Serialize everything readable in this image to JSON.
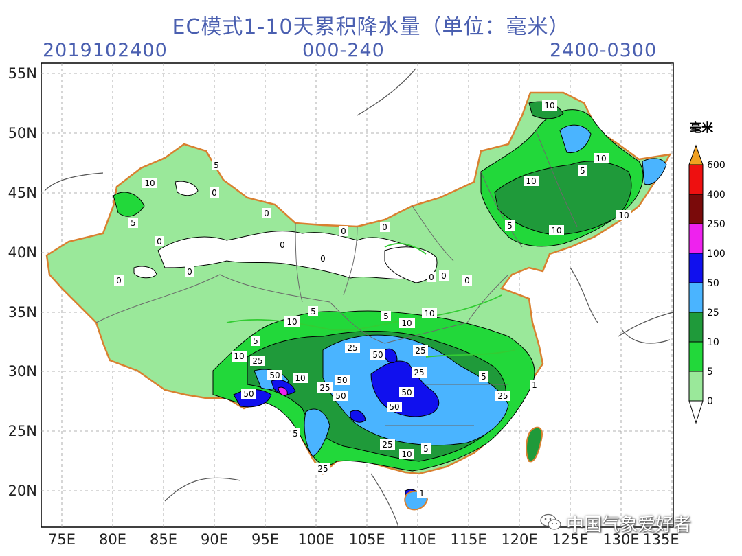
{
  "title": "EC模式1-10天累积降水量（单位：毫米）",
  "header": {
    "init_time": "2019102400",
    "forecast_hours": "000-240",
    "valid_period": "2400-0300"
  },
  "axes": {
    "lon_ticks": [
      "75E",
      "80E",
      "85E",
      "90E",
      "95E",
      "100E",
      "105E",
      "110E",
      "115E",
      "120E",
      "125E",
      "130E",
      "135E"
    ],
    "lat_ticks": [
      "55N",
      "50N",
      "45N",
      "40N",
      "35N",
      "30N",
      "25N",
      "20N"
    ]
  },
  "legend": {
    "unit": "毫米",
    "levels": [
      {
        "label": "0",
        "color": "#ffffff"
      },
      {
        "label": "5",
        "color": "#9ae89a"
      },
      {
        "label": "10",
        "color": "#22d83a"
      },
      {
        "label": "25",
        "color": "#1f9a3a"
      },
      {
        "label": "50",
        "color": "#4ab4ff"
      },
      {
        "label": "100",
        "color": "#1010ee"
      },
      {
        "label": "250",
        "color": "#ee22ee"
      },
      {
        "label": "400",
        "color": "#7a0a0a"
      },
      {
        "label": "600",
        "color": "#ee1010"
      },
      {
        "label": "",
        "color": "#f0a020"
      }
    ]
  },
  "contour_labels": [
    "10",
    "5",
    "10",
    "10",
    "5",
    "0",
    "5",
    "10",
    "0",
    "5",
    "0",
    "0",
    "0",
    "0",
    "0",
    "0",
    "0",
    "0",
    "0",
    "0",
    "10",
    "5",
    "10",
    "10",
    "25",
    "5",
    "10",
    "5",
    "25",
    "25",
    "50",
    "50",
    "10",
    "50",
    "25",
    "50",
    "25",
    "50",
    "50",
    "50",
    "25",
    "10",
    "5",
    "25",
    "5",
    "25",
    "10",
    "5",
    "10",
    "10",
    "10",
    "1",
    "1"
  ],
  "watermark": "中国气象爱好者"
}
